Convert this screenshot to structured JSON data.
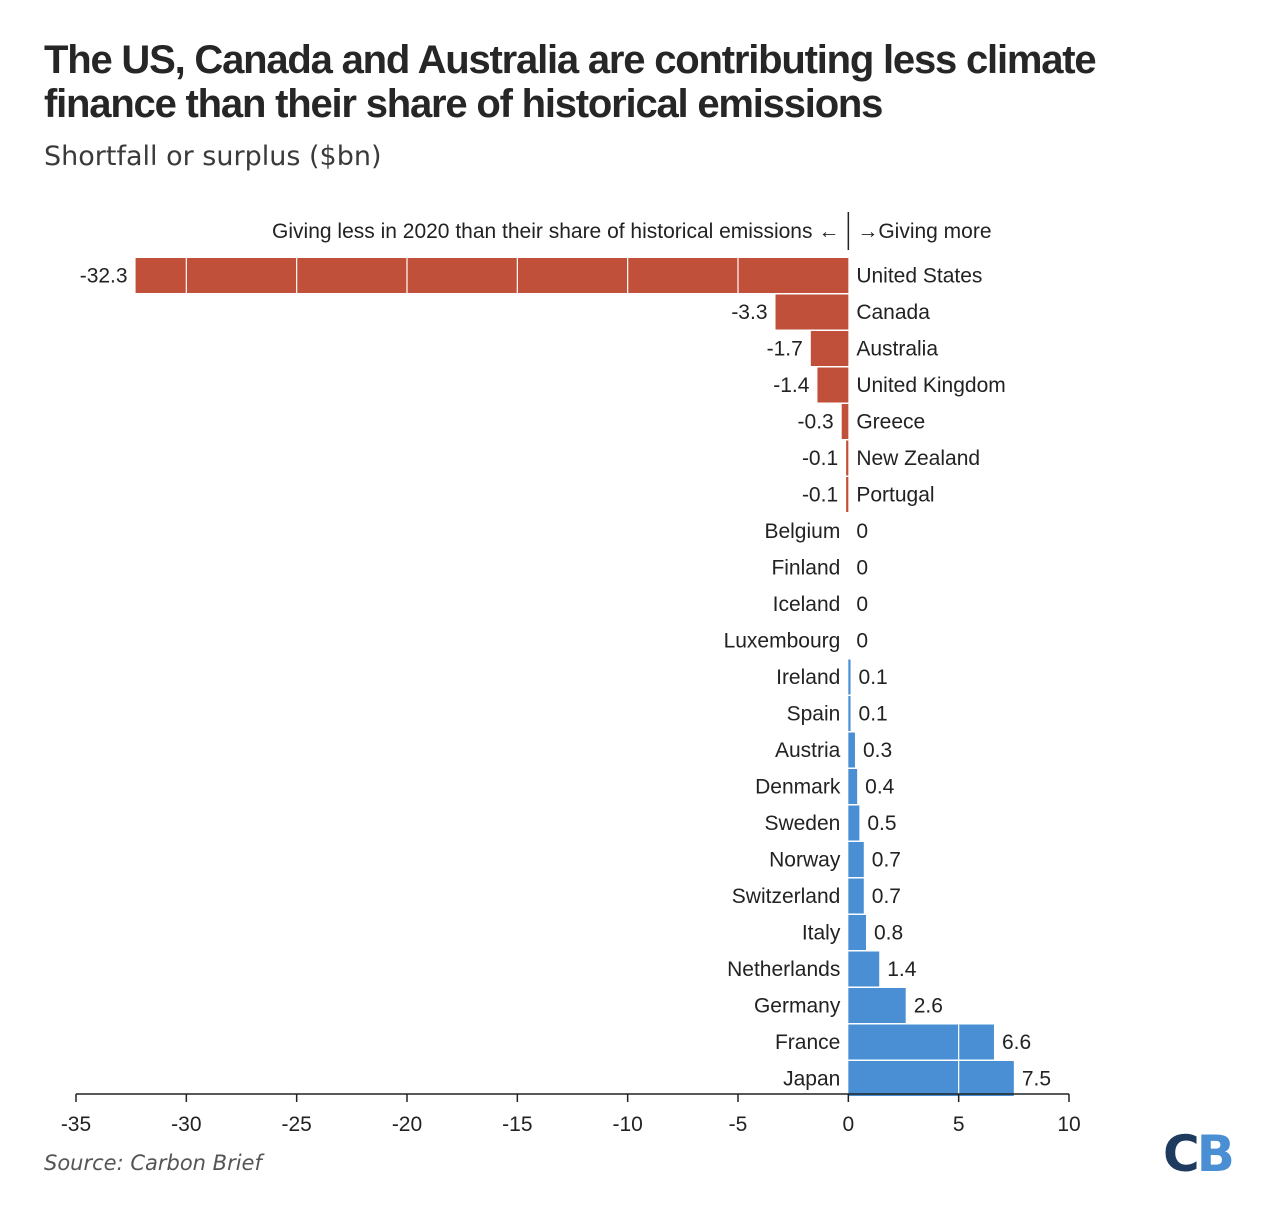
{
  "title": "The US, Canada and Australia are contributing less climate finance than their share of historical emissions",
  "subtitle": "Shortfall or surplus ($bn)",
  "source": "Source: Carbon Brief",
  "logo": {
    "c": "C",
    "b": "B"
  },
  "colors": {
    "negative": "#c0503a",
    "positive": "#4a8fd4",
    "axis": "#222222",
    "text": "#222222"
  },
  "chart_data": {
    "type": "bar",
    "orientation": "horizontal",
    "categories": [
      "United States",
      "Canada",
      "Australia",
      "United Kingdom",
      "Greece",
      "New Zealand",
      "Portugal",
      "Belgium",
      "Finland",
      "Iceland",
      "Luxembourg",
      "Ireland",
      "Spain",
      "Austria",
      "Denmark",
      "Sweden",
      "Norway",
      "Switzerland",
      "Italy",
      "Netherlands",
      "Germany",
      "France",
      "Japan"
    ],
    "values": [
      -32.3,
      -3.3,
      -1.7,
      -1.4,
      -0.3,
      -0.1,
      -0.1,
      0,
      0,
      0,
      0,
      0.1,
      0.1,
      0.3,
      0.4,
      0.5,
      0.7,
      0.7,
      0.8,
      1.4,
      2.6,
      6.6,
      7.5
    ],
    "value_labels": [
      "-32.3",
      "-3.3",
      "-1.7",
      "-1.4",
      "-0.3",
      "-0.1",
      "-0.1",
      "0",
      "0",
      "0",
      "0",
      "0.1",
      "0.1",
      "0.3",
      "0.4",
      "0.5",
      "0.7",
      "0.7",
      "0.8",
      "1.4",
      "2.6",
      "6.6",
      "7.5"
    ],
    "xlim": [
      -35,
      10
    ],
    "xticks": [
      -35,
      -30,
      -25,
      -20,
      -15,
      -10,
      -5,
      0,
      5,
      10
    ],
    "tick_labels": [
      "-35",
      "-30",
      "-25",
      "-20",
      "-15",
      "-10",
      "-5",
      "0",
      "5",
      "10"
    ],
    "gridlines_on_bars": true,
    "legend_left": "Giving less in 2020 than their share of historical emissions ←",
    "legend_right": "→Giving more"
  }
}
